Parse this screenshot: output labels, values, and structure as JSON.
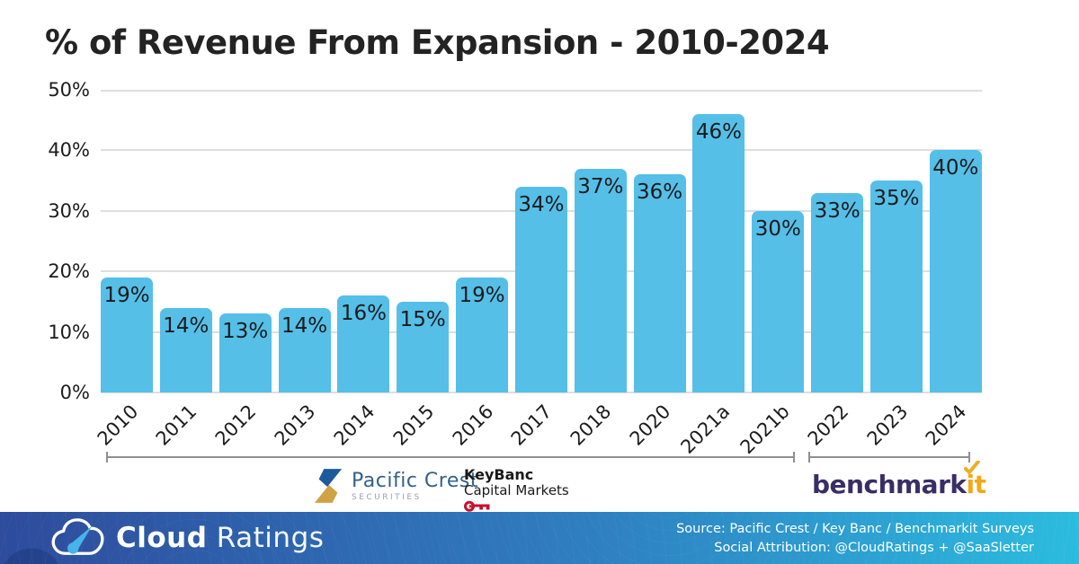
{
  "title": "% of Revenue From Expansion - 2010-2024",
  "chart_data": {
    "type": "bar",
    "title": "% of Revenue From Expansion - 2010-2024",
    "categories": [
      "2010",
      "2011",
      "2012",
      "2013",
      "2014",
      "2015",
      "2016",
      "2017",
      "2018",
      "2020",
      "2021a",
      "2021b",
      "2022",
      "2023",
      "2024"
    ],
    "values": [
      19,
      14,
      13,
      14,
      16,
      15,
      19,
      34,
      37,
      36,
      46,
      30,
      33,
      35,
      40
    ],
    "value_suffix": "%",
    "yticks": [
      "50%",
      "40%",
      "30%",
      "20%",
      "10%",
      "0%"
    ],
    "ylim": [
      0,
      50
    ],
    "grid": true,
    "bar_color": "#55bfe8",
    "label_color": "#1b1b1b",
    "group_brackets": [
      {
        "start": "2010",
        "end": "2021b"
      },
      {
        "start": "2022",
        "end": "2024"
      }
    ]
  },
  "logos": {
    "pacific_crest": {
      "name": "Pacific Crest",
      "subtitle": "SECURITIES"
    },
    "keybanc": {
      "name": "KeyBanc",
      "subtitle": "Capital Markets"
    },
    "benchmarkit": {
      "prefix": "benchmark",
      "suffix": "it"
    }
  },
  "footer": {
    "brand_bold": "Cloud",
    "brand_light": "Ratings",
    "source_line": "Source: Pacific Crest / Key Banc / Benchmarkit Surveys",
    "attribution_line": "Social Attribution: @CloudRatings + @SaaSletter",
    "gradient_left": "#2e4b9c",
    "gradient_right": "#2bbcdf"
  }
}
